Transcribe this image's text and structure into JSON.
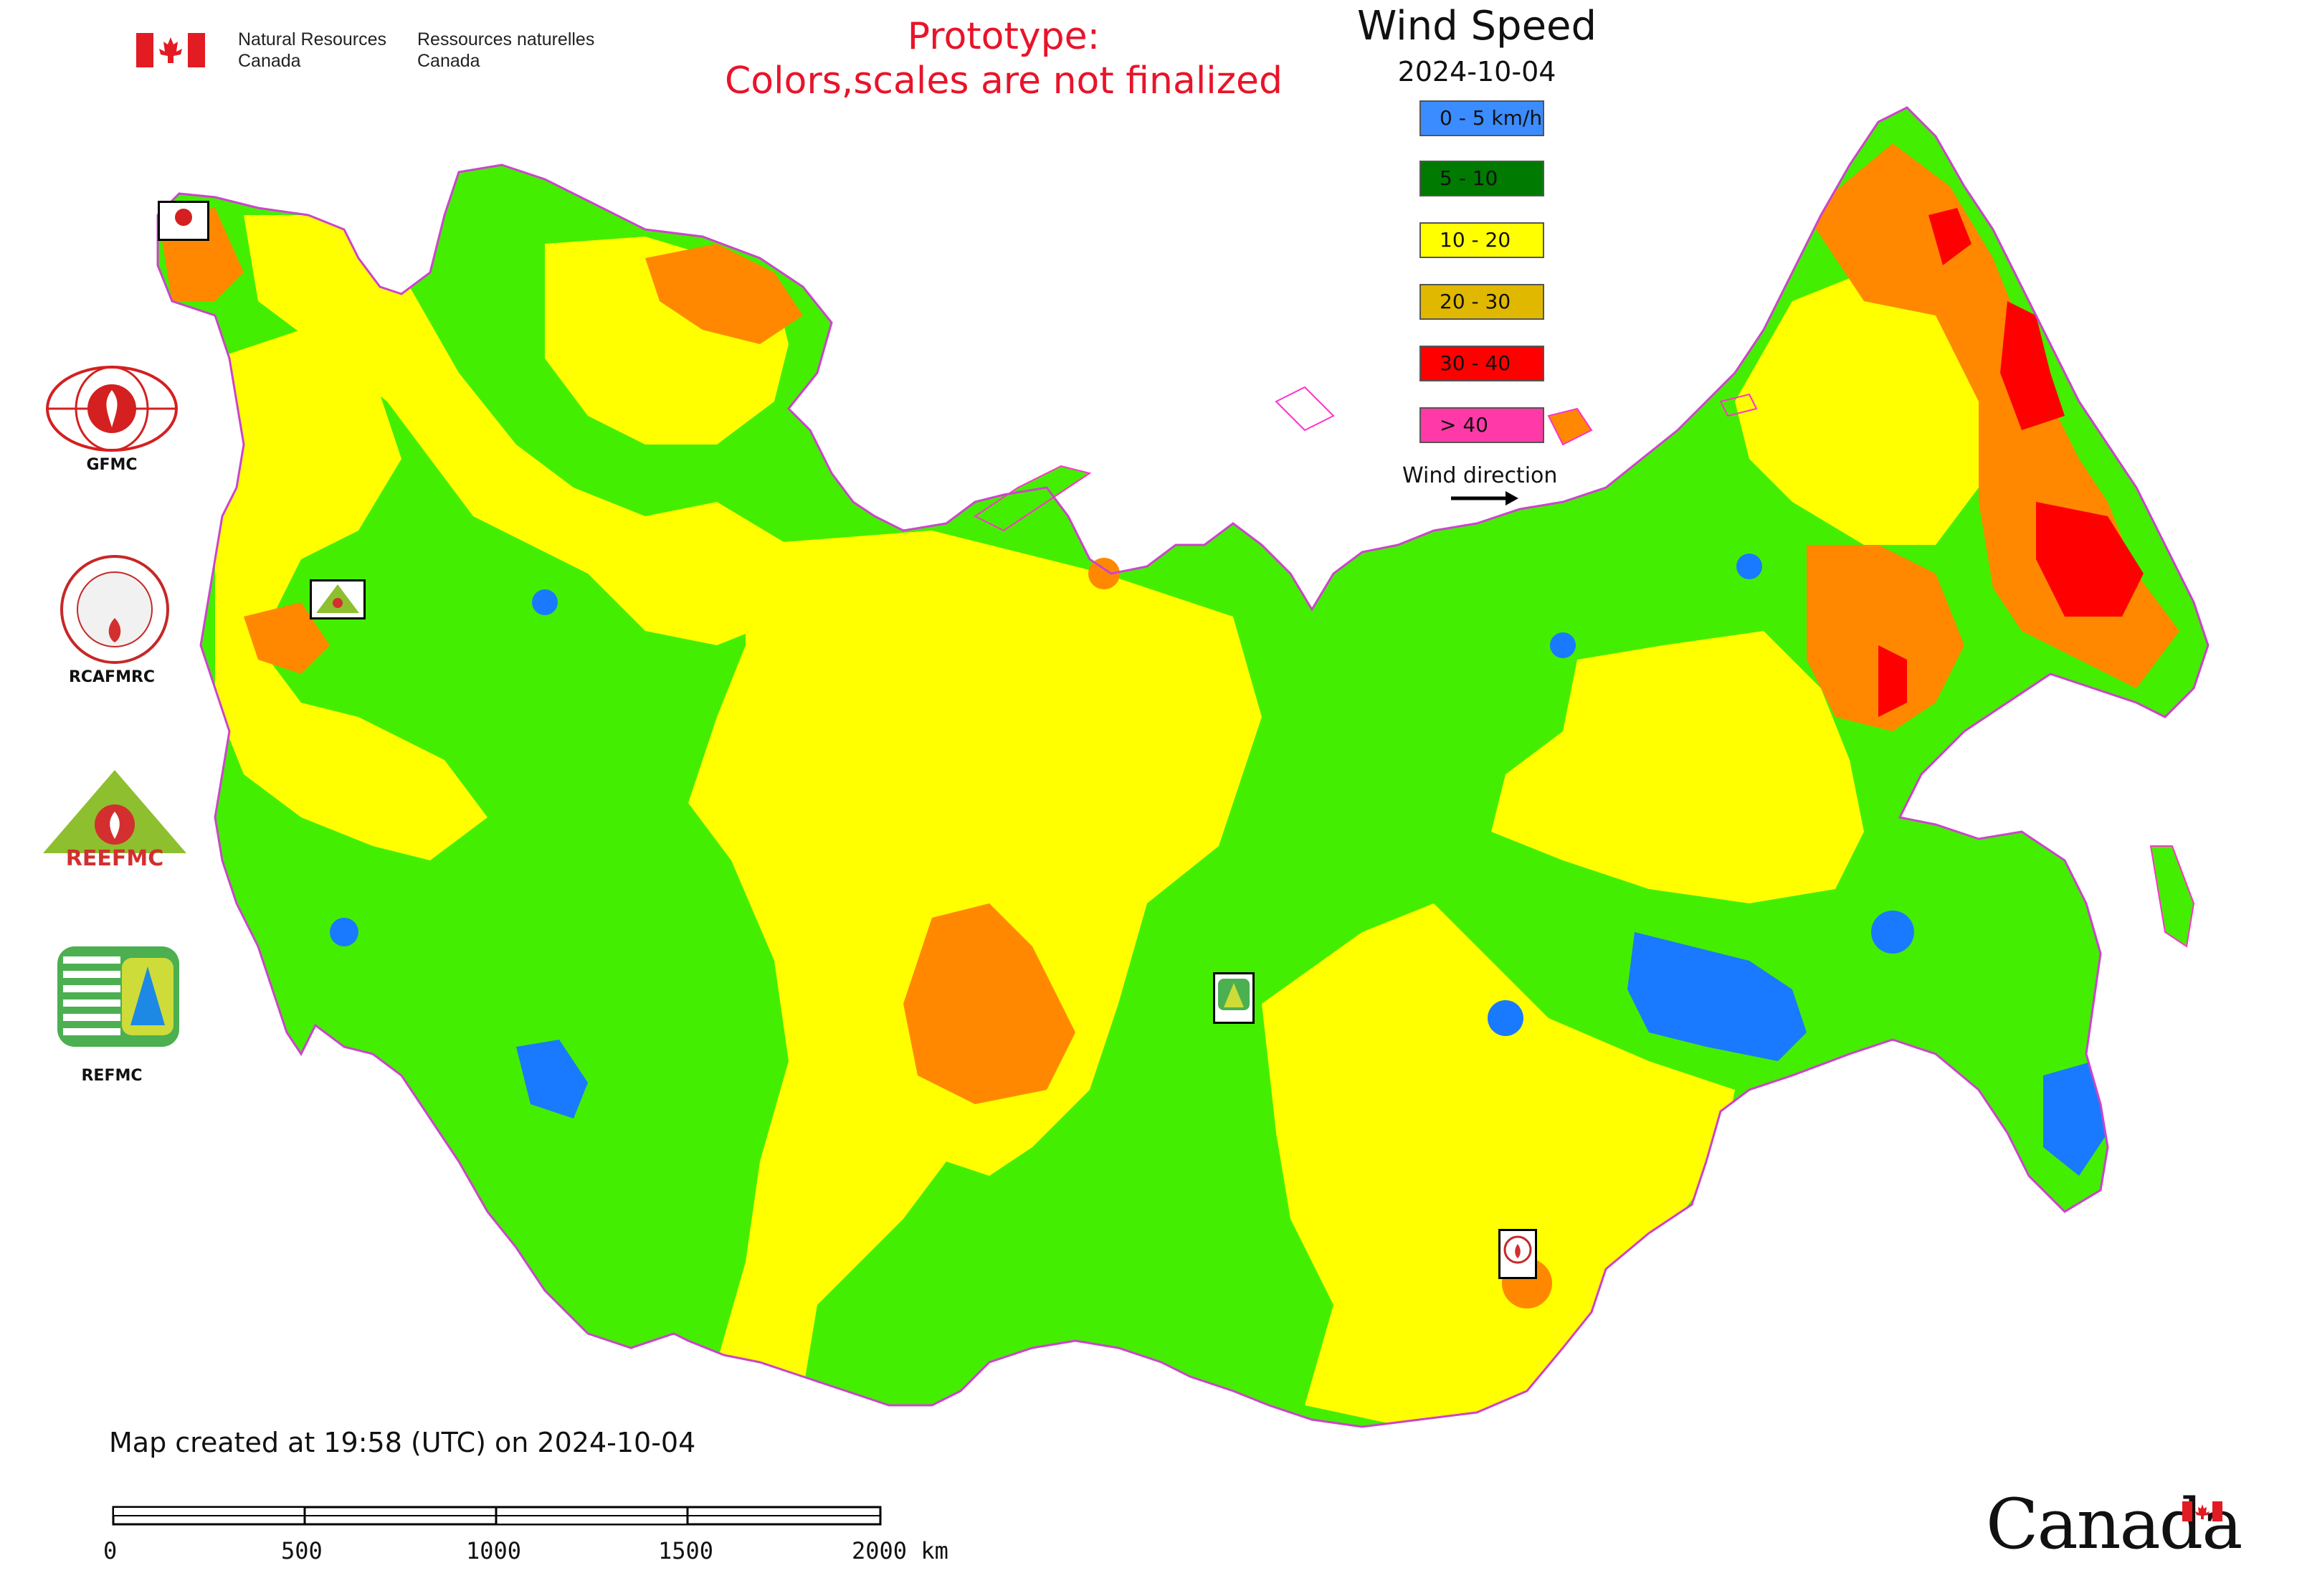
{
  "header": {
    "ministry_en_line1": "Natural Resources",
    "ministry_en_line2": "Canada",
    "ministry_fr_line1": "Ressources naturelles",
    "ministry_fr_line2": "Canada",
    "prototype_line1": "Prototype:",
    "prototype_line2": "Colors,scales are not finalized"
  },
  "title": "Wind Speed",
  "date": "2024-10-04",
  "legend": {
    "items": [
      {
        "label": "0 - 5 km/h",
        "color": "#3b8cff"
      },
      {
        "label": "5 - 10",
        "color": "#007a00"
      },
      {
        "label": "10 - 20",
        "color": "#ffff00"
      },
      {
        "label": "20 - 30",
        "color": "#e0b800"
      },
      {
        "label": "30 - 40",
        "color": "#ff0000"
      },
      {
        "label": "> 40",
        "color": "#ff3aa8"
      }
    ],
    "wind_direction_label": "Wind direction"
  },
  "map_colors": {
    "land_green": "#44ee00",
    "yellow": "#ffff00",
    "orange": "#ff8800",
    "red": "#ff0000",
    "blue": "#1a7aff",
    "magenta": "#ff33cc",
    "border": "#cc44cc"
  },
  "organizations": {
    "gfmc": "GFMC",
    "rcafmrc": "RCAFMRC",
    "reefmc_logo_text": "REEFMC",
    "refmc": "REFMC"
  },
  "footer": {
    "created": "Map created at 19:58 (UTC) on 2024-10-04",
    "scale_ticks": [
      "0",
      "500",
      "1000",
      "1500",
      "2000 km"
    ],
    "wordmark": "Canada"
  }
}
